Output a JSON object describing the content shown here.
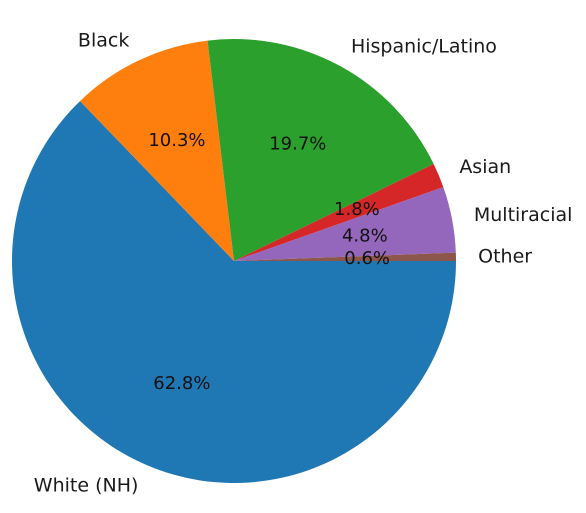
{
  "chart_data": {
    "type": "pie",
    "title": "",
    "start_angle_deg": 0,
    "direction": "clockwise-on-screen",
    "slices": [
      {
        "label": "White (NH)",
        "value": 62.8,
        "pct_label": "62.8%",
        "color": "#1f77b4"
      },
      {
        "label": "Black",
        "value": 10.3,
        "pct_label": "10.3%",
        "color": "#ff7f0e"
      },
      {
        "label": "Hispanic/Latino",
        "value": 19.7,
        "pct_label": "19.7%",
        "color": "#2ca02c"
      },
      {
        "label": "Asian",
        "value": 1.8,
        "pct_label": "1.8%",
        "color": "#d62728"
      },
      {
        "label": "Multiracial",
        "value": 4.8,
        "pct_label": "4.8%",
        "color": "#9467bd"
      },
      {
        "label": "Other",
        "value": 0.6,
        "pct_label": "0.6%",
        "color": "#8c564b"
      }
    ]
  }
}
